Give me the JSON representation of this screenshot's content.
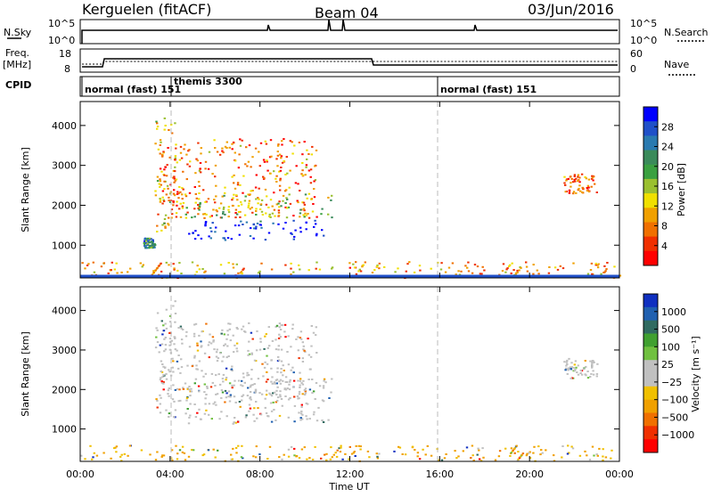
{
  "header": {
    "station": "Kerguelen (fitACF)",
    "beam": "Beam 04",
    "date": "03/Jun/2016"
  },
  "nsky_panel": {
    "left_label": "N.Sky",
    "right_label": "N.Search",
    "left_ticks": [
      "10^5",
      "10^0"
    ],
    "right_ticks": [
      "10^5",
      "10^0"
    ]
  },
  "freq_panel": {
    "left_label_1": "Freq.",
    "left_label_2": "[MHz]",
    "right_label": "Nave",
    "left_ticks": [
      "18",
      "8"
    ],
    "right_ticks": [
      "60",
      "0"
    ]
  },
  "cpid": {
    "label": "CPID",
    "modes": [
      {
        "start_hour": 0,
        "text": "normal (fast) 151"
      },
      {
        "start_hour": 4,
        "text": "themis 3300"
      },
      {
        "start_hour": 16,
        "text": "normal (fast) 151"
      }
    ]
  },
  "chart_data": [
    {
      "type": "heatmap",
      "name": "Power",
      "ylabel": "Slant Range [km]",
      "xlabel": "Time UT",
      "x_ticks": [
        "00:00",
        "04:00",
        "08:00",
        "12:00",
        "16:00",
        "20:00",
        "00:00"
      ],
      "xlim_hours": [
        0,
        24
      ],
      "ylim_km": [
        180,
        4600
      ],
      "y_ticks": [
        1000,
        2000,
        3000,
        4000
      ],
      "colorbar": {
        "label": "Power [dB]",
        "ticks": [
          "4",
          "8",
          "12",
          "16",
          "20",
          "24",
          "28"
        ],
        "colors": [
          "#0000ff",
          "#2050c8",
          "#2a7ab0",
          "#3a8a5a",
          "#3aa040",
          "#9ac030",
          "#f0e000",
          "#f0a000",
          "#f07000",
          "#f03000",
          "#ff0000"
        ]
      },
      "regions": [
        {
          "t0": 3.3,
          "t1": 4.2,
          "r0": 1300,
          "r1": 4300,
          "level": 0.35
        },
        {
          "t0": 3.5,
          "t1": 10.5,
          "r0": 1700,
          "r1": 3700,
          "level": 0.25
        },
        {
          "t0": 4.5,
          "t1": 11.2,
          "r0": 1700,
          "r1": 2300,
          "level": 0.5
        },
        {
          "t0": 4.8,
          "t1": 10.8,
          "r0": 1150,
          "r1": 1650,
          "level": 0.95
        },
        {
          "t0": 2.8,
          "t1": 3.3,
          "r0": 950,
          "r1": 1200,
          "level": 0.7
        },
        {
          "t0": 0.0,
          "t1": 24.0,
          "r0": 200,
          "r1": 600,
          "level": 0.3
        },
        {
          "t0": 21.5,
          "t1": 23.0,
          "r0": 2300,
          "r1": 2800,
          "level": 0.2
        }
      ]
    },
    {
      "type": "heatmap",
      "name": "Velocity",
      "ylabel": "Slant Range [km]",
      "xlabel": "Time UT",
      "x_ticks": [
        "00:00",
        "04:00",
        "08:00",
        "12:00",
        "16:00",
        "20:00",
        "00:00"
      ],
      "xlim_hours": [
        0,
        24
      ],
      "ylim_km": [
        180,
        4600
      ],
      "y_ticks": [
        1000,
        2000,
        3000,
        4000
      ],
      "colorbar": {
        "label": "Velocity [m s⁻¹]",
        "ticks": [
          "1000",
          "500",
          "100",
          "25",
          "−25",
          "−100",
          "−500",
          "−1000"
        ],
        "colors": [
          "#1030c0",
          "#2060b0",
          "#306a60",
          "#40a030",
          "#70c040",
          "#c0c0c0",
          "#c0c0c0",
          "#f0c000",
          "#f0a000",
          "#f07000",
          "#f03000",
          "#ff0000"
        ]
      },
      "regions": [
        {
          "t0": 3.3,
          "t1": 4.2,
          "r0": 1300,
          "r1": 4300,
          "level": 0.6
        },
        {
          "t0": 3.5,
          "t1": 10.5,
          "r0": 1700,
          "r1": 3700,
          "level": 0.45
        },
        {
          "t0": 4.5,
          "t1": 11.2,
          "r0": 1150,
          "r1": 2300,
          "level": 0.5
        },
        {
          "t0": 0.0,
          "t1": 24.0,
          "r0": 200,
          "r1": 600,
          "level": 0.7
        },
        {
          "t0": 21.5,
          "t1": 23.0,
          "r0": 2300,
          "r1": 2800,
          "level": 0.45
        }
      ]
    }
  ]
}
